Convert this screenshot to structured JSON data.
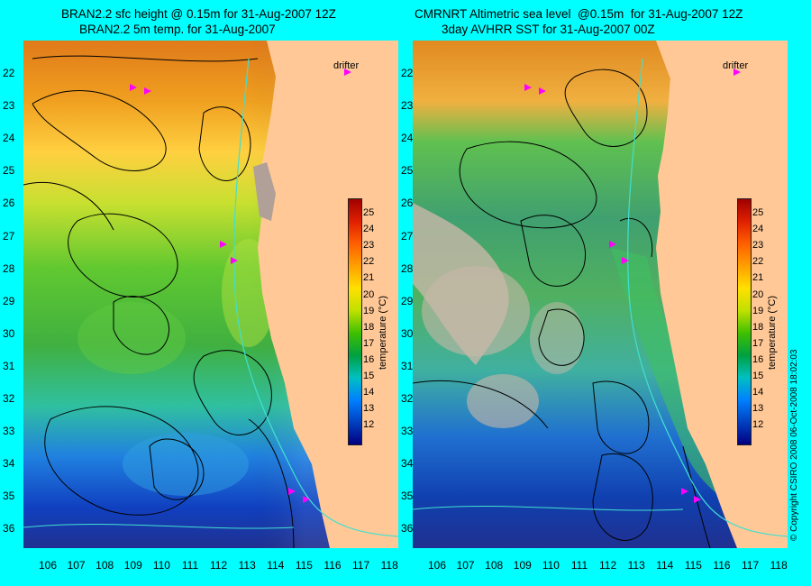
{
  "left_panel": {
    "title_line1": "BRAN2.2 sfc height @ 0.15m for 31-Aug-2007 12Z",
    "title_line2": "BRAN2.2 5m temp. for 31-Aug-2007",
    "legend_label": "drifter"
  },
  "right_panel": {
    "title_line1": "CMRNRT Altimetric sea level  @0.15m  for 31-Aug-2007 12Z",
    "title_line2": "3day AVHRR SST for 31-Aug-2007 00Z",
    "legend_label": "drifter"
  },
  "latitude_labels": [
    "22",
    "23",
    "24",
    "25",
    "26",
    "27",
    "28",
    "29",
    "30",
    "31",
    "32",
    "33",
    "34",
    "35",
    "36"
  ],
  "longitude_labels": [
    "106",
    "107",
    "108",
    "109",
    "110",
    "111",
    "112",
    "113",
    "114",
    "115",
    "116",
    "117",
    "118"
  ],
  "colorbar": {
    "ticks": [
      "25",
      "24",
      "23",
      "22",
      "21",
      "20",
      "19",
      "18",
      "17",
      "16",
      "15",
      "14",
      "13",
      "12"
    ],
    "unit": "temperature (°C)",
    "range": [
      11.5,
      26
    ]
  },
  "copyright": "© Copyright CSIRO 2008   06-Oct-2008 18:02:03",
  "colors": {
    "background": "#00ffff",
    "land": "#ffc896",
    "contour": "#000000",
    "isobath": "#40e0d0",
    "drifter": "#ff00ff"
  }
}
